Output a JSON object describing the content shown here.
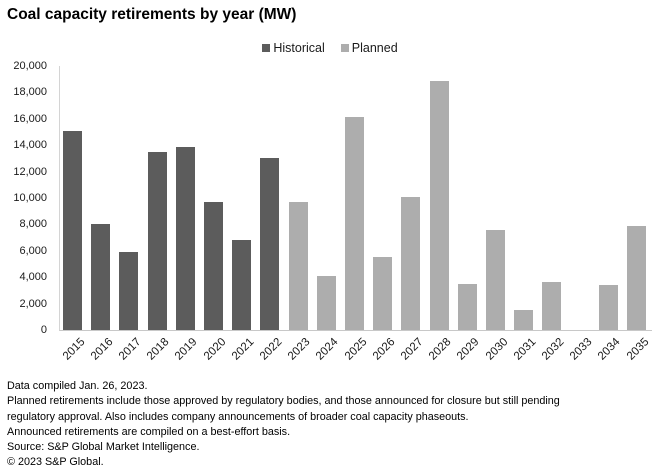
{
  "chart_data": {
    "type": "bar",
    "title": "Coal capacity retirements by year (MW)",
    "categories": [
      "2015",
      "2016",
      "2017",
      "2018",
      "2019",
      "2020",
      "2021",
      "2022",
      "2023",
      "2024",
      "2025",
      "2026",
      "2027",
      "2028",
      "2029",
      "2030",
      "2031",
      "2032",
      "2033",
      "2034",
      "2035"
    ],
    "series": [
      {
        "name": "Historical",
        "color": "#5c5c5c",
        "values": [
          15100,
          8000,
          5900,
          13500,
          13850,
          9700,
          6800,
          13000,
          null,
          null,
          null,
          null,
          null,
          null,
          null,
          null,
          null,
          null,
          null,
          null,
          null
        ]
      },
      {
        "name": "Planned",
        "color": "#adadad",
        "values": [
          null,
          null,
          null,
          null,
          null,
          null,
          null,
          null,
          9700,
          4100,
          16100,
          5500,
          10100,
          18850,
          3450,
          7600,
          1500,
          3600,
          0,
          3400,
          7900
        ]
      }
    ],
    "xlabel": "",
    "ylabel": "",
    "ylim": [
      0,
      20000
    ],
    "ytick_step": 2000,
    "ytick_labels": [
      "20,000",
      "18,000",
      "16,000",
      "14,000",
      "12,000",
      "10,000",
      "8,000",
      "6,000",
      "4,000",
      "2,000",
      "0"
    ],
    "legend_position": "top-center",
    "grid": false
  },
  "footer": {
    "lines": [
      "Data compiled Jan. 26, 2023.",
      "Planned retirements include those approved by regulatory bodies, and those announced for closure but still pending",
      "regulatory approval. Also includes company announcements of broader coal capacity phaseouts.",
      "Announced retirements are compiled on a best-effort basis.",
      "Source: S&P Global Market Intelligence.",
      "© 2023 S&P Global."
    ]
  }
}
